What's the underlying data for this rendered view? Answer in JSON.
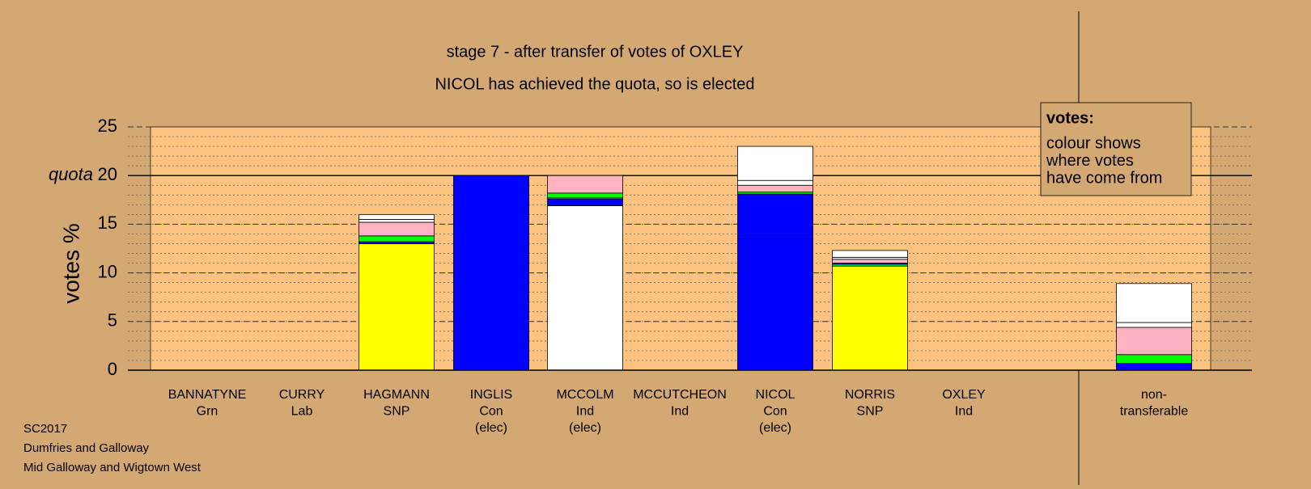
{
  "chart_data": {
    "type": "stacked-bar",
    "title": "stage 7 - after transfer of votes of OXLEY",
    "subtitle": "NICOL has achieved the quota, so is elected",
    "y_label": "votes %",
    "ylim": [
      0,
      25
    ],
    "yticks": [
      0,
      5,
      10,
      15,
      20,
      25
    ],
    "minor_grid_step": 1,
    "quota": 20,
    "quota_label": "quota",
    "legend": {
      "title": "votes:",
      "lines": [
        "colour shows",
        "where votes",
        "have come from"
      ]
    },
    "categories": [
      [
        "BANNATYNE",
        "Grn"
      ],
      [
        "CURRY",
        "Lab"
      ],
      [
        "HAGMANN",
        "SNP"
      ],
      [
        "INGLIS",
        "Con",
        "(elec)"
      ],
      [
        "MCCOLM",
        "Ind",
        "(elec)"
      ],
      [
        "MCCUTCHEON",
        "Ind"
      ],
      [
        "NICOL",
        "Con",
        "(elec)"
      ],
      [
        "NORRIS",
        "SNP"
      ],
      [
        "OXLEY",
        "Ind"
      ],
      [
        "non-",
        "transferable"
      ]
    ],
    "stacks": [
      [],
      [],
      [
        {
          "value": 13.0,
          "color": "#ffff00"
        },
        {
          "value": 0.2,
          "color": "#0000ff"
        },
        {
          "value": 0.6,
          "color": "#00ff00"
        },
        {
          "value": 1.4,
          "color": "#ffb3c1"
        },
        {
          "value": 0.3,
          "color": "#ffffff"
        },
        {
          "value": 0.5,
          "color": "#ffffff"
        }
      ],
      [
        {
          "value": 20.0,
          "color": "#0000ff"
        }
      ],
      [
        {
          "value": 16.9,
          "color": "#ffffff"
        },
        {
          "value": 0.7,
          "color": "#0000ff"
        },
        {
          "value": 0.1,
          "color": "#ffffff"
        },
        {
          "value": 0.5,
          "color": "#00ff00"
        },
        {
          "value": 1.8,
          "color": "#ffb3c1"
        }
      ],
      [],
      [
        {
          "value": 13.5,
          "color": "#0000ff"
        },
        {
          "value": 4.6,
          "color": "#0000ff"
        },
        {
          "value": 0.2,
          "color": "#00ff00"
        },
        {
          "value": 0.7,
          "color": "#ffb3c1"
        },
        {
          "value": 0.5,
          "color": "#ffffff"
        },
        {
          "value": 3.5,
          "color": "#ffffff"
        }
      ],
      [
        {
          "value": 10.7,
          "color": "#ffff00"
        },
        {
          "value": 0.2,
          "color": "#00ff00"
        },
        {
          "value": 0.1,
          "color": "#0000ff"
        },
        {
          "value": 0.4,
          "color": "#ffb3c1"
        },
        {
          "value": 0.2,
          "color": "#ffffff"
        },
        {
          "value": 0.7,
          "color": "#ffffff"
        }
      ],
      [],
      [
        {
          "value": 0.7,
          "color": "#0000ff"
        },
        {
          "value": 0.9,
          "color": "#00ff00"
        },
        {
          "value": 2.8,
          "color": "#ffb3c1"
        },
        {
          "value": 0.5,
          "color": "#ffffff"
        },
        {
          "value": 4.0,
          "color": "#ffffff"
        }
      ]
    ],
    "footer": [
      "SC2017",
      "Dumfries and Galloway",
      "Mid Galloway and Wigtown West"
    ]
  }
}
